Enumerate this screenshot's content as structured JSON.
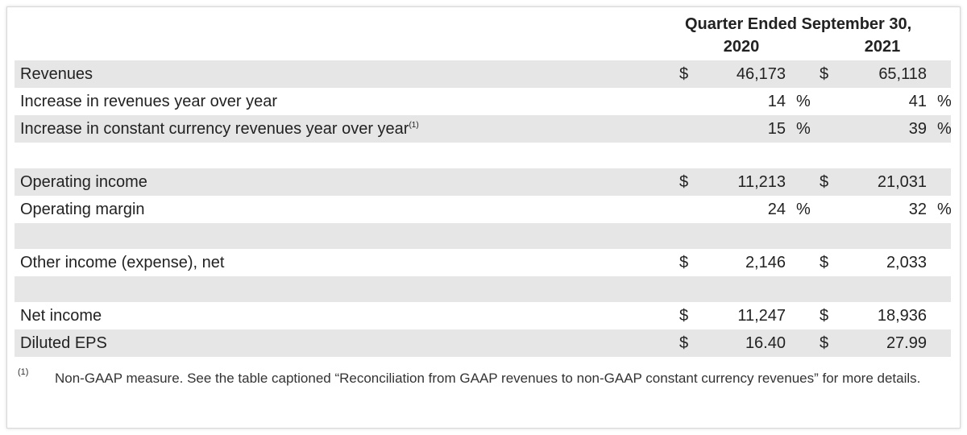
{
  "header": {
    "title": "Quarter Ended September 30,",
    "columns": [
      "2020",
      "2021"
    ]
  },
  "sections": [
    [
      {
        "label": "Revenues",
        "cells": [
          {
            "currency": "$",
            "value": "46,173"
          },
          {
            "currency": "$",
            "value": "65,118"
          }
        ]
      },
      {
        "label": "Increase in revenues year over year",
        "cells": [
          {
            "value": "14",
            "unit": "%"
          },
          {
            "value": "41",
            "unit": "%"
          }
        ]
      },
      {
        "label": "Increase in constant currency revenues year over year",
        "note": "(1)",
        "cells": [
          {
            "value": "15",
            "unit": "%"
          },
          {
            "value": "39",
            "unit": "%"
          }
        ]
      }
    ],
    [
      {
        "label": "Operating income",
        "cells": [
          {
            "currency": "$",
            "value": "11,213"
          },
          {
            "currency": "$",
            "value": "21,031"
          }
        ]
      },
      {
        "label": "Operating margin",
        "cells": [
          {
            "value": "24",
            "unit": "%"
          },
          {
            "value": "32",
            "unit": "%"
          }
        ]
      }
    ],
    [
      {
        "label": "Other income (expense), net",
        "cells": [
          {
            "currency": "$",
            "value": "2,146"
          },
          {
            "currency": "$",
            "value": "2,033"
          }
        ]
      }
    ],
    [
      {
        "label": "Net income",
        "cells": [
          {
            "currency": "$",
            "value": "11,247"
          },
          {
            "currency": "$",
            "value": "18,936"
          }
        ]
      },
      {
        "label": "Diluted EPS",
        "cells": [
          {
            "currency": "$",
            "value": "16.40"
          },
          {
            "currency": "$",
            "value": "27.99"
          }
        ]
      }
    ]
  ],
  "footnote": {
    "marker": "(1)",
    "text": "Non-GAAP measure. See the table captioned “Reconciliation from GAAP revenues to non-GAAP constant currency revenues” for more details."
  }
}
